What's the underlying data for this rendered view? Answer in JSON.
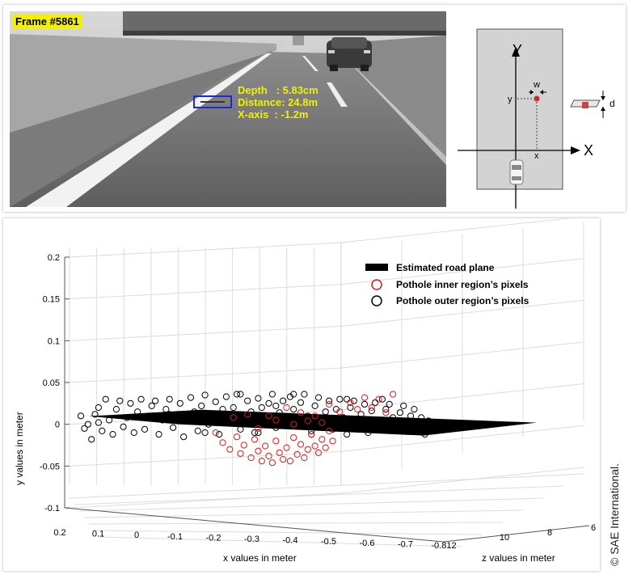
{
  "road_view": {
    "frame_label": "Frame #5861",
    "readouts": [
      {
        "label": "Depth   :",
        "value": "5.83cm"
      },
      {
        "label": "Distance:",
        "value": "24.8m"
      },
      {
        "label": "X-axis  :",
        "value": "-1.2m"
      }
    ]
  },
  "diagram": {
    "y_axis_label": "Y",
    "x_axis_label": "X",
    "y_marker": "y",
    "x_marker": "x",
    "width_marker": "w",
    "depth_marker": "d"
  },
  "chart_data": {
    "type": "scatter",
    "dimensions": 3,
    "ylabel": "y values in meter",
    "xlabel": "x values in meter",
    "zlabel": "z values in meter",
    "y_ticks": [
      "0.2",
      "0.15",
      "0.1",
      "0.05",
      "0",
      "-0.05",
      "-0.1"
    ],
    "x_ticks": [
      "0.2",
      "0.1",
      "0",
      "-0.1",
      "-0.2",
      "-0.3",
      "-0.4",
      "-0.5",
      "-0.6",
      "-0.7",
      "-0.812"
    ],
    "z_ticks": [
      "10",
      "8",
      "6"
    ],
    "ylim": [
      -0.1,
      0.2
    ],
    "xlim": [
      0.2,
      -0.812
    ],
    "grid": true,
    "legend_position": "top-right",
    "legend": [
      {
        "name": "Estimated road plane",
        "marker": "filled-rectangle",
        "color": "#000000"
      },
      {
        "name": "Pothole inner region’s pixels",
        "marker": "circle",
        "color": "#e0191a"
      },
      {
        "name": "Pothole outer region’s pixels",
        "marker": "circle",
        "color": "#000000"
      }
    ],
    "series": [
      {
        "name": "Pothole outer region’s pixels",
        "color": "#000000",
        "points": [
          [
            0.2,
            0.01
          ],
          [
            0.19,
            -0.005
          ],
          [
            0.18,
            0.0
          ],
          [
            0.17,
            -0.018
          ],
          [
            0.16,
            0.012
          ],
          [
            0.15,
            0.02
          ],
          [
            0.14,
            -0.008
          ],
          [
            0.13,
            0.03
          ],
          [
            0.12,
            0.005
          ],
          [
            0.11,
            -0.012
          ],
          [
            0.1,
            0.018
          ],
          [
            0.09,
            0.028
          ],
          [
            0.08,
            -0.003
          ],
          [
            0.07,
            0.008
          ],
          [
            0.06,
            0.025
          ],
          [
            0.05,
            -0.01
          ],
          [
            0.04,
            0.015
          ],
          [
            0.03,
            0.03
          ],
          [
            0.02,
            -0.006
          ],
          [
            0.01,
            0.01
          ],
          [
            0.0,
            0.022
          ],
          [
            -0.01,
            0.028
          ],
          [
            -0.02,
            -0.012
          ],
          [
            -0.03,
            0.005
          ],
          [
            -0.04,
            0.018
          ],
          [
            -0.05,
            0.03
          ],
          [
            -0.06,
            -0.004
          ],
          [
            -0.07,
            0.012
          ],
          [
            -0.08,
            0.025
          ],
          [
            -0.09,
            -0.015
          ],
          [
            -0.1,
            0.006
          ],
          [
            -0.11,
            0.032
          ],
          [
            -0.12,
            0.015
          ],
          [
            -0.13,
            -0.008
          ],
          [
            -0.14,
            0.022
          ],
          [
            -0.15,
            0.035
          ],
          [
            -0.16,
            0.0
          ],
          [
            -0.17,
            0.012
          ],
          [
            -0.18,
            0.027
          ],
          [
            -0.19,
            -0.012
          ],
          [
            -0.2,
            0.018
          ],
          [
            -0.21,
            0.033
          ],
          [
            -0.22,
            0.004
          ],
          [
            -0.23,
            0.02
          ],
          [
            -0.24,
            0.036
          ],
          [
            -0.25,
            -0.006
          ],
          [
            -0.26,
            0.01
          ],
          [
            -0.27,
            0.028
          ],
          [
            -0.28,
            0.015
          ],
          [
            -0.29,
            -0.01
          ],
          [
            -0.3,
            0.031
          ],
          [
            -0.31,
            0.02
          ],
          [
            -0.32,
            0.002
          ],
          [
            -0.33,
            0.025
          ],
          [
            -0.34,
            0.036
          ],
          [
            -0.35,
            -0.004
          ],
          [
            -0.36,
            0.014
          ],
          [
            -0.37,
            0.028
          ],
          [
            -0.38,
            0.008
          ],
          [
            -0.39,
            0.033
          ],
          [
            -0.4,
            0.018
          ],
          [
            -0.41,
            -0.002
          ],
          [
            -0.42,
            0.026
          ],
          [
            -0.43,
            0.036
          ],
          [
            -0.44,
            0.01
          ],
          [
            -0.45,
            -0.008
          ],
          [
            -0.46,
            0.022
          ],
          [
            -0.47,
            0.032
          ],
          [
            -0.48,
            0.004
          ],
          [
            -0.49,
            0.015
          ],
          [
            -0.5,
            0.028
          ],
          [
            -0.51,
            -0.006
          ],
          [
            -0.52,
            0.018
          ],
          [
            -0.53,
            0.03
          ],
          [
            -0.54,
            0.008
          ],
          [
            -0.55,
            -0.012
          ],
          [
            -0.56,
            0.02
          ],
          [
            -0.57,
            0.028
          ],
          [
            -0.58,
            0.0
          ],
          [
            -0.59,
            0.012
          ],
          [
            -0.6,
            0.024
          ],
          [
            -0.61,
            -0.01
          ],
          [
            -0.62,
            0.016
          ],
          [
            -0.63,
            0.026
          ],
          [
            -0.64,
            0.004
          ],
          [
            -0.65,
            -0.006
          ],
          [
            -0.66,
            0.018
          ],
          [
            -0.67,
            0.024
          ],
          [
            -0.68,
            0.008
          ],
          [
            -0.69,
            -0.004
          ],
          [
            -0.7,
            0.014
          ],
          [
            -0.71,
            0.022
          ],
          [
            -0.72,
            -0.008
          ],
          [
            -0.73,
            0.01
          ],
          [
            -0.74,
            0.018
          ],
          [
            -0.75,
            -0.002
          ],
          [
            -0.76,
            0.008
          ],
          [
            -0.77,
            -0.012
          ],
          [
            -0.78,
            0.004
          ],
          [
            -0.79,
            -0.006
          ],
          [
            -0.3,
            -0.01
          ],
          [
            -0.45,
            -0.012
          ],
          [
            -0.55,
            0.03
          ],
          [
            -0.25,
            0.036
          ],
          [
            -0.4,
            0.036
          ],
          [
            0.15,
            0.002
          ],
          [
            -0.05,
            0.012
          ],
          [
            -0.65,
            0.03
          ],
          [
            -0.35,
            0.022
          ],
          [
            -0.15,
            -0.01
          ]
        ]
      },
      {
        "name": "Pothole inner region’s pixels",
        "color": "#e0191a",
        "points": [
          [
            -0.18,
            -0.01
          ],
          [
            -0.2,
            -0.022
          ],
          [
            -0.22,
            -0.03
          ],
          [
            -0.24,
            -0.015
          ],
          [
            -0.25,
            -0.035
          ],
          [
            -0.26,
            -0.025
          ],
          [
            -0.28,
            -0.04
          ],
          [
            -0.29,
            -0.018
          ],
          [
            -0.3,
            -0.032
          ],
          [
            -0.31,
            -0.044
          ],
          [
            -0.32,
            -0.026
          ],
          [
            -0.33,
            -0.038
          ],
          [
            -0.34,
            -0.046
          ],
          [
            -0.35,
            -0.02
          ],
          [
            -0.36,
            -0.034
          ],
          [
            -0.37,
            -0.042
          ],
          [
            -0.38,
            -0.028
          ],
          [
            -0.39,
            -0.044
          ],
          [
            -0.4,
            -0.016
          ],
          [
            -0.41,
            -0.036
          ],
          [
            -0.42,
            -0.024
          ],
          [
            -0.43,
            -0.04
          ],
          [
            -0.44,
            -0.03
          ],
          [
            -0.45,
            -0.012
          ],
          [
            -0.46,
            -0.026
          ],
          [
            -0.47,
            -0.034
          ],
          [
            -0.48,
            -0.018
          ],
          [
            -0.49,
            -0.028
          ],
          [
            -0.5,
            -0.008
          ],
          [
            -0.51,
            -0.02
          ],
          [
            -0.23,
            0.008
          ],
          [
            -0.27,
            0.012
          ],
          [
            -0.33,
            0.01
          ],
          [
            -0.38,
            0.02
          ],
          [
            -0.42,
            0.014
          ],
          [
            -0.46,
            0.01
          ],
          [
            -0.5,
            0.024
          ],
          [
            -0.53,
            0.015
          ],
          [
            -0.56,
            0.026
          ],
          [
            -0.58,
            0.018
          ],
          [
            -0.6,
            0.032
          ],
          [
            -0.62,
            0.02
          ],
          [
            -0.64,
            0.03
          ],
          [
            -0.66,
            0.014
          ],
          [
            -0.68,
            0.036
          ],
          [
            -0.35,
            0.005
          ],
          [
            -0.4,
            0.0
          ],
          [
            -0.44,
            0.004
          ],
          [
            -0.48,
            0.002
          ],
          [
            -0.3,
            -0.005
          ]
        ]
      }
    ]
  },
  "copyright": "© SAE International."
}
